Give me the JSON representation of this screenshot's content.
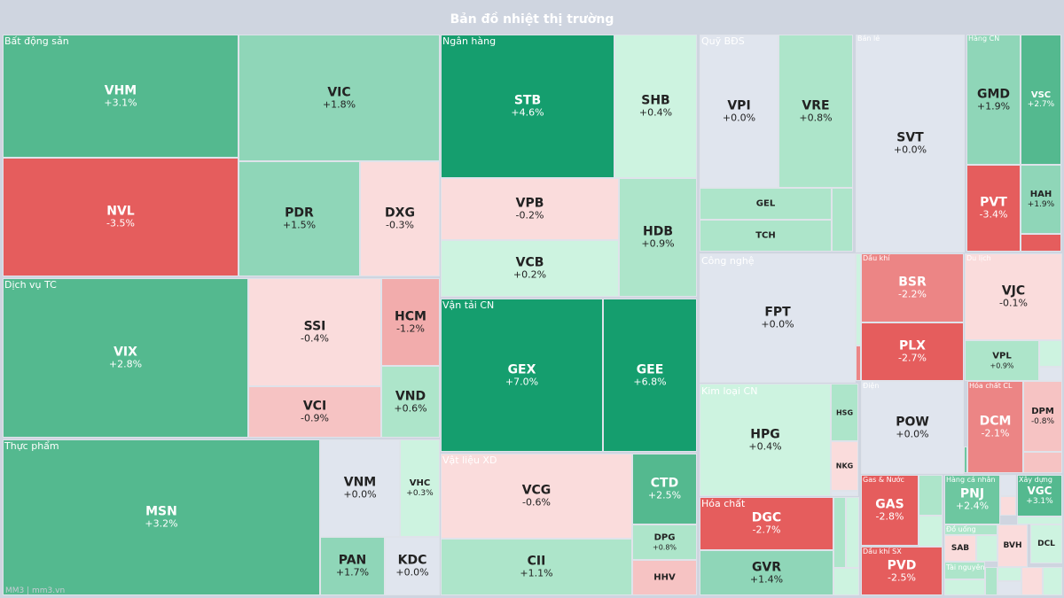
{
  "title": "Bản đồ nhiệt thị trường",
  "watermark": "MM3 | mm3.vn",
  "colors": {
    "dark_green": "#159e6e",
    "green": "#54b98f",
    "mid_green": "#6dc7a0",
    "light_green": "#8fd6b8",
    "pale_green": "#ade5ca",
    "faint_green": "#cdf3e0",
    "neutral": "#e0e5ee",
    "faint_red": "#fadcdc",
    "pale_red": "#f6c3c3",
    "light_red": "#f2acac",
    "red": "#ec8585",
    "strong_red": "#e55d5d"
  },
  "chart_data": {
    "type": "treemap",
    "title": "Bản đồ nhiệt thị trường",
    "sectors": [
      {
        "name": "Bất động sản",
        "stocks": [
          {
            "ticker": "VHM",
            "change": "+3.1%"
          },
          {
            "ticker": "VIC",
            "change": "+1.8%"
          },
          {
            "ticker": "NVL",
            "change": "-3.5%"
          },
          {
            "ticker": "PDR",
            "change": "+1.5%"
          },
          {
            "ticker": "DXG",
            "change": "-0.3%"
          }
        ]
      },
      {
        "name": "Dịch vụ TC",
        "stocks": [
          {
            "ticker": "VIX",
            "change": "+2.8%"
          },
          {
            "ticker": "SSI",
            "change": "-0.4%"
          },
          {
            "ticker": "HCM",
            "change": "-1.2%"
          },
          {
            "ticker": "VCI",
            "change": "-0.9%"
          },
          {
            "ticker": "VND",
            "change": "+0.6%"
          }
        ]
      },
      {
        "name": "Thực phẩm",
        "stocks": [
          {
            "ticker": "MSN",
            "change": "+3.2%"
          },
          {
            "ticker": "VNM",
            "change": "+0.0%"
          },
          {
            "ticker": "VHC",
            "change": "+0.3%"
          },
          {
            "ticker": "PAN",
            "change": "+1.7%"
          },
          {
            "ticker": "KDC",
            "change": "+0.0%"
          }
        ]
      },
      {
        "name": "Ngân hàng",
        "stocks": [
          {
            "ticker": "STB",
            "change": "+4.6%"
          },
          {
            "ticker": "SHB",
            "change": "+0.4%"
          },
          {
            "ticker": "VPB",
            "change": "-0.2%"
          },
          {
            "ticker": "HDB",
            "change": "+0.9%"
          },
          {
            "ticker": "VCB",
            "change": "+0.2%"
          }
        ]
      },
      {
        "name": "Vận tải CN",
        "stocks": [
          {
            "ticker": "GEX",
            "change": "+7.0%"
          },
          {
            "ticker": "GEE",
            "change": "+6.8%"
          }
        ]
      },
      {
        "name": "Vật liệu XD",
        "stocks": [
          {
            "ticker": "VCG",
            "change": "-0.6%"
          },
          {
            "ticker": "CTD",
            "change": "+2.5%"
          },
          {
            "ticker": "DPG",
            "change": "+0.8%"
          },
          {
            "ticker": "CII",
            "change": "+1.1%"
          },
          {
            "ticker": "HHV",
            "change": ""
          }
        ]
      },
      {
        "name": "Quỹ BĐS",
        "stocks": [
          {
            "ticker": "VPI",
            "change": "+0.0%"
          },
          {
            "ticker": "VRE",
            "change": "+0.8%"
          },
          {
            "ticker": "GEL",
            "change": ""
          },
          {
            "ticker": "TCH",
            "change": ""
          }
        ]
      },
      {
        "name": "Bán lẻ",
        "stocks": [
          {
            "ticker": "SVT",
            "change": "+0.0%"
          }
        ]
      },
      {
        "name": "Hàng CN",
        "stocks": [
          {
            "ticker": "GMD",
            "change": "+1.9%"
          },
          {
            "ticker": "VSC",
            "change": "+2.7%"
          },
          {
            "ticker": "PVT",
            "change": "-3.4%"
          },
          {
            "ticker": "HAH",
            "change": "+1.9%"
          }
        ]
      },
      {
        "name": "Công nghệ",
        "stocks": [
          {
            "ticker": "FPT",
            "change": "+0.0%"
          }
        ]
      },
      {
        "name": "Dầu khí",
        "stocks": [
          {
            "ticker": "BSR",
            "change": "-2.2%"
          },
          {
            "ticker": "PLX",
            "change": "-2.7%"
          }
        ]
      },
      {
        "name": "Du lịch",
        "stocks": [
          {
            "ticker": "VJC",
            "change": "-0.1%"
          },
          {
            "ticker": "VPL",
            "change": "+0.9%"
          }
        ]
      },
      {
        "name": "Kim loại CN",
        "stocks": [
          {
            "ticker": "HPG",
            "change": "+0.4%"
          },
          {
            "ticker": "HSG",
            "change": ""
          },
          {
            "ticker": "NKG",
            "change": ""
          }
        ]
      },
      {
        "name": "Điện",
        "stocks": [
          {
            "ticker": "POW",
            "change": "+0.0%"
          }
        ]
      },
      {
        "name": "Hóa chất CL",
        "stocks": [
          {
            "ticker": "DCM",
            "change": "-2.1%"
          },
          {
            "ticker": "DPM",
            "change": "-0.8%"
          }
        ]
      },
      {
        "name": "Hóa chất",
        "stocks": [
          {
            "ticker": "DGC",
            "change": "-2.7%"
          },
          {
            "ticker": "GVR",
            "change": "+1.4%"
          }
        ]
      },
      {
        "name": "Gas & Nước",
        "stocks": [
          {
            "ticker": "GAS",
            "change": "-2.8%"
          }
        ]
      },
      {
        "name": "Hàng cá nhân",
        "stocks": [
          {
            "ticker": "PNJ",
            "change": "+2.4%"
          }
        ]
      },
      {
        "name": "Xây dựng",
        "stocks": [
          {
            "ticker": "VGC",
            "change": "+3.1%"
          }
        ]
      },
      {
        "name": "Đồ uống",
        "stocks": [
          {
            "ticker": "SAB",
            "change": ""
          },
          {
            "ticker": "BVH",
            "change": ""
          },
          {
            "ticker": "DCL",
            "change": ""
          }
        ]
      },
      {
        "name": "Dầu khí SX",
        "stocks": [
          {
            "ticker": "PVD",
            "change": "-2.5%"
          }
        ]
      },
      {
        "name": "Tài nguyên",
        "stocks": []
      }
    ]
  }
}
